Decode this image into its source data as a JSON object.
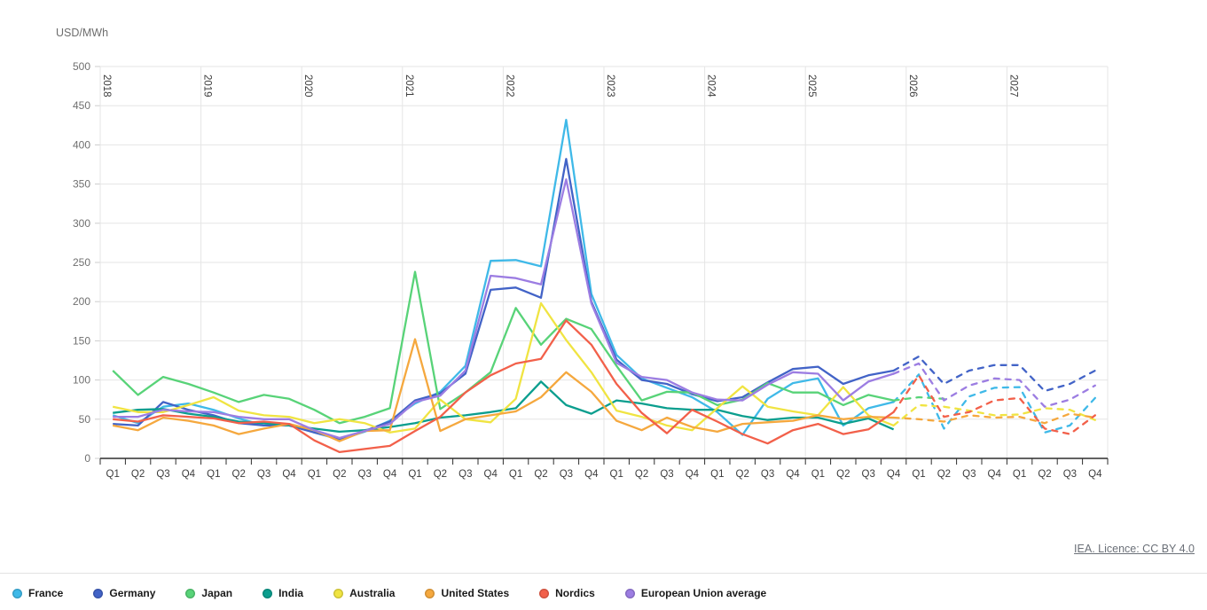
{
  "chart": {
    "unit_label": "USD/MWh"
  },
  "footer": {
    "licence_text": "IEA. Licence: CC BY 4.0"
  },
  "chart_data": {
    "type": "line",
    "title": "",
    "ylabel": "USD/MWh",
    "xlabel": "",
    "ylim": [
      0,
      500
    ],
    "ytick_step": 50,
    "grid": true,
    "legend_position": "bottom",
    "forecast_start_index": 31,
    "forecast_style": "dashed",
    "categories": [
      "2018 Q1",
      "2018 Q2",
      "2018 Q3",
      "2018 Q4",
      "2019 Q1",
      "2019 Q2",
      "2019 Q3",
      "2019 Q4",
      "2020 Q1",
      "2020 Q2",
      "2020 Q3",
      "2020 Q4",
      "2021 Q1",
      "2021 Q2",
      "2021 Q3",
      "2021 Q4",
      "2022 Q1",
      "2022 Q2",
      "2022 Q3",
      "2022 Q4",
      "2023 Q1",
      "2023 Q2",
      "2023 Q3",
      "2023 Q4",
      "2024 Q1",
      "2024 Q2",
      "2024 Q3",
      "2024 Q4",
      "2025 Q1",
      "2025 Q2",
      "2025 Q3",
      "2025 Q4",
      "2026 Q1",
      "2026 Q2",
      "2026 Q3",
      "2026 Q4",
      "2027 Q1",
      "2027 Q2",
      "2027 Q3",
      "2027 Q4"
    ],
    "series": [
      {
        "name": "France",
        "color": "#3fb9e8",
        "values": [
          55,
          45,
          66,
          70,
          62,
          51,
          42,
          44,
          33,
          24,
          34,
          48,
          70,
          85,
          118,
          252,
          253,
          245,
          432,
          210,
          132,
          102,
          90,
          78,
          59,
          30,
          76,
          96,
          102,
          42,
          64,
          72,
          107,
          38,
          79,
          90,
          91,
          33,
          42,
          77
        ]
      },
      {
        "name": "Germany",
        "color": "#4263c7",
        "values": [
          44,
          42,
          72,
          62,
          55,
          45,
          42,
          42,
          33,
          25,
          35,
          47,
          74,
          83,
          108,
          215,
          218,
          205,
          382,
          200,
          126,
          100,
          95,
          82,
          73,
          78,
          97,
          114,
          117,
          95,
          106,
          112,
          130,
          95,
          112,
          119,
          119,
          86,
          95,
          112
        ]
      },
      {
        "name": "Japan",
        "color": "#58d378",
        "values": [
          112,
          81,
          104,
          95,
          84,
          72,
          81,
          76,
          62,
          45,
          53,
          64,
          238,
          63,
          84,
          110,
          192,
          145,
          178,
          165,
          118,
          74,
          85,
          84,
          68,
          75,
          96,
          84,
          84,
          68,
          81,
          74,
          78,
          76,
          null,
          null,
          null,
          null,
          null,
          null
        ]
      },
      {
        "name": "India",
        "color": "#0b9e8e",
        "values": [
          58,
          62,
          63,
          57,
          53,
          47,
          45,
          42,
          38,
          34,
          36,
          40,
          45,
          52,
          55,
          59,
          64,
          98,
          68,
          57,
          74,
          70,
          64,
          62,
          62,
          54,
          49,
          52,
          52,
          44,
          51,
          37,
          null,
          null,
          null,
          null,
          null,
          null,
          null,
          null
        ]
      },
      {
        "name": "Australia",
        "color": "#f0e442",
        "values": [
          66,
          59,
          59,
          68,
          78,
          61,
          55,
          53,
          45,
          50,
          45,
          33,
          38,
          75,
          50,
          46,
          76,
          198,
          151,
          110,
          61,
          53,
          42,
          36,
          64,
          92,
          66,
          60,
          55,
          91,
          55,
          42,
          68,
          66,
          61,
          55,
          56,
          64,
          62,
          49
        ]
      },
      {
        "name": "United States",
        "color": "#f5a83e",
        "values": [
          42,
          36,
          52,
          48,
          42,
          31,
          38,
          44,
          36,
          22,
          35,
          36,
          152,
          35,
          50,
          55,
          60,
          78,
          110,
          85,
          48,
          36,
          52,
          40,
          34,
          44,
          46,
          48,
          55,
          50,
          53,
          52,
          50,
          47,
          55,
          52,
          53,
          45,
          57,
          52
        ]
      },
      {
        "name": "Nordics",
        "color": "#f2604a",
        "values": [
          50,
          47,
          55,
          53,
          51,
          45,
          47,
          44,
          23,
          8,
          12,
          16,
          35,
          53,
          84,
          106,
          121,
          127,
          176,
          145,
          95,
          58,
          32,
          62,
          47,
          31,
          19,
          36,
          44,
          31,
          37,
          59,
          106,
          53,
          59,
          74,
          77,
          38,
          31,
          55
        ]
      },
      {
        "name": "European Union average",
        "color": "#9c7de2",
        "values": [
          53,
          53,
          62,
          60,
          59,
          53,
          50,
          50,
          36,
          26,
          35,
          44,
          72,
          80,
          112,
          233,
          230,
          222,
          356,
          198,
          122,
          104,
          100,
          84,
          75,
          74,
          94,
          110,
          108,
          74,
          98,
          108,
          121,
          74,
          93,
          102,
          100,
          66,
          75,
          93
        ]
      }
    ]
  }
}
